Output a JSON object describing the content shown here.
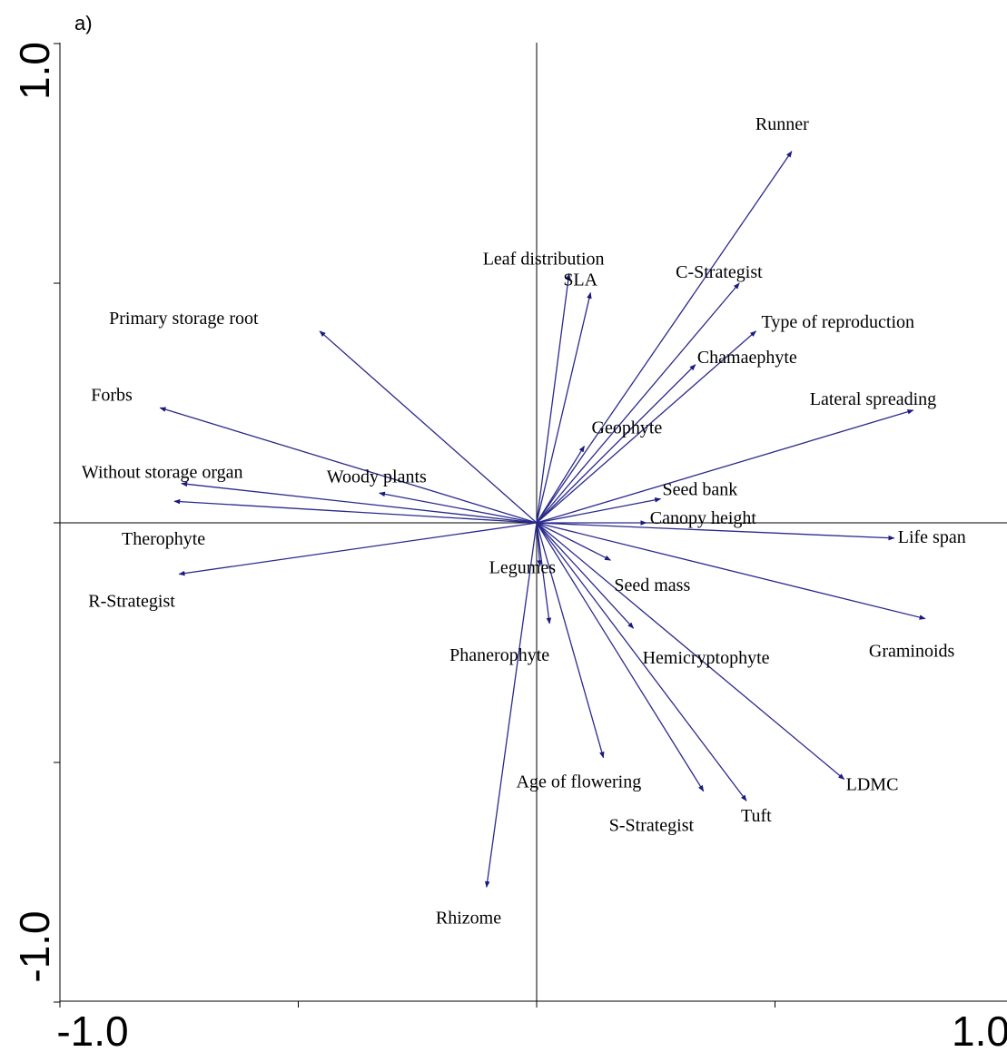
{
  "chart_data": {
    "type": "scatter",
    "panel_label": "a)",
    "title": "",
    "xlabel": "",
    "ylabel": "",
    "xlim": [
      -1.0,
      1.0
    ],
    "ylim": [
      -1.0,
      1.0
    ],
    "x_tick_labels": [
      "-1.0",
      "1.0"
    ],
    "y_tick_labels": [
      "1.0",
      "-1.0"
    ],
    "grid": false,
    "legend": "none",
    "arrow_color": "#1a1a80",
    "vectors": [
      {
        "name": "Runner",
        "x": 0.535,
        "y": 0.775
      },
      {
        "name": "Leaf distribution",
        "x": 0.068,
        "y": 0.52
      },
      {
        "name": "SLA",
        "x": 0.113,
        "y": 0.48
      },
      {
        "name": "C-Strategist",
        "x": 0.425,
        "y": 0.5
      },
      {
        "name": "Type of reproduction",
        "x": 0.46,
        "y": 0.4
      },
      {
        "name": "Chamaephyte",
        "x": 0.333,
        "y": 0.33
      },
      {
        "name": "Lateral spreading",
        "x": 0.79,
        "y": 0.235
      },
      {
        "name": "Geophyte",
        "x": 0.1,
        "y": 0.16
      },
      {
        "name": "Seed bank",
        "x": 0.26,
        "y": 0.05
      },
      {
        "name": "Canopy height",
        "x": 0.23,
        "y": 0.0
      },
      {
        "name": "Life span",
        "x": 0.75,
        "y": -0.032
      },
      {
        "name": "Seed mass",
        "x": 0.155,
        "y": -0.078
      },
      {
        "name": "Graminoids",
        "x": 0.815,
        "y": -0.2
      },
      {
        "name": "Hemicryptophyte",
        "x": 0.203,
        "y": -0.22
      },
      {
        "name": "Legumes",
        "x": 0.007,
        "y": -0.09
      },
      {
        "name": "Phanerophyte",
        "x": 0.027,
        "y": -0.21
      },
      {
        "name": "LDMC",
        "x": 0.645,
        "y": -0.535
      },
      {
        "name": "Age of flowering",
        "x": 0.14,
        "y": -0.49
      },
      {
        "name": "S-Strategist",
        "x": 0.35,
        "y": -0.56
      },
      {
        "name": "Tuft",
        "x": 0.44,
        "y": -0.58
      },
      {
        "name": "Rhizome",
        "x": -0.105,
        "y": -0.76
      },
      {
        "name": "Primary storage root",
        "x": -0.455,
        "y": 0.4
      },
      {
        "name": "Forbs",
        "x": -0.79,
        "y": 0.24
      },
      {
        "name": "Woody plants",
        "x": -0.33,
        "y": 0.062
      },
      {
        "name": "Without storage organ",
        "x": -0.745,
        "y": 0.082
      },
      {
        "name": "Therophyte",
        "x": -0.76,
        "y": 0.045
      },
      {
        "name": "R-Strategist",
        "x": -0.75,
        "y": -0.107
      }
    ]
  }
}
